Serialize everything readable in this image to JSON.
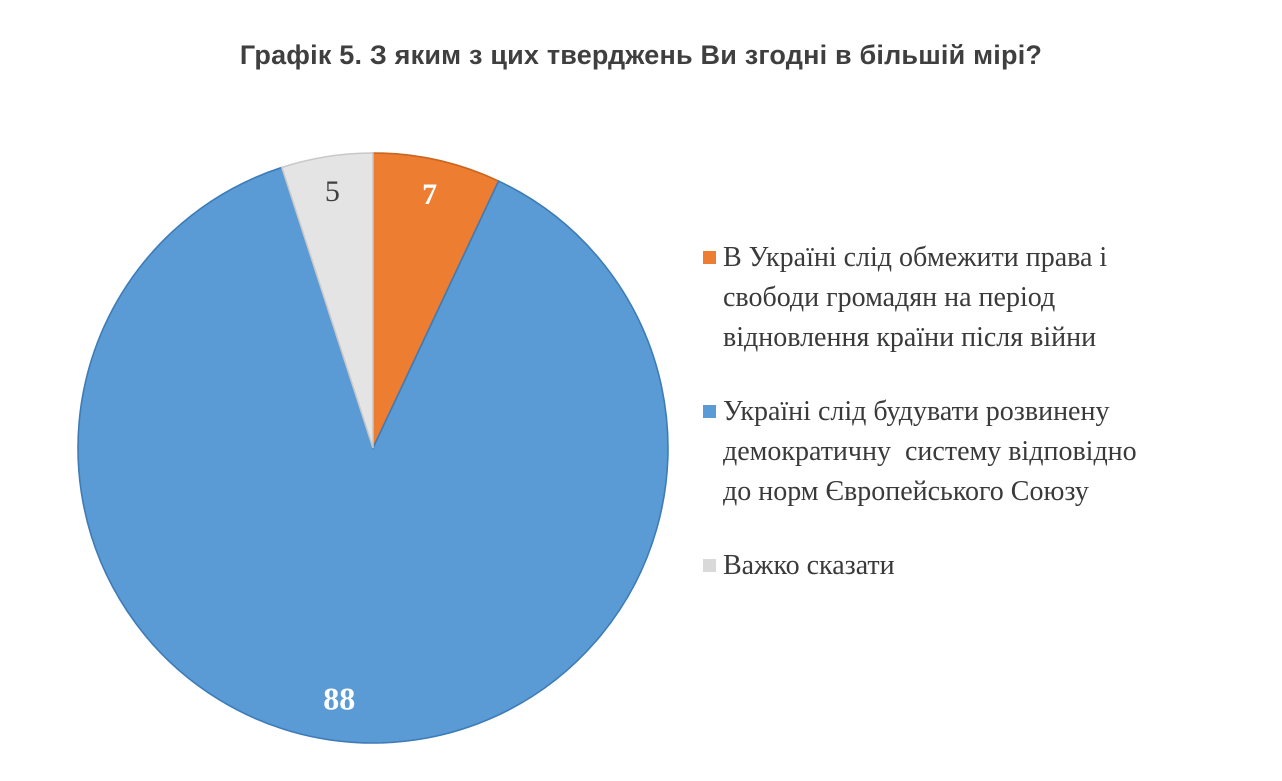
{
  "title": {
    "text": "Графік 5. З яким з цих тверджень Ви згодні в більшій мірі?",
    "color": "#3F3F3F"
  },
  "chart_data": {
    "type": "pie",
    "title": "Графік 5. З яким з цих тверджень Ви згодні в більшій мірі?",
    "legend_position": "right",
    "start_angle_deg": 0,
    "direction": "clockwise",
    "total": 100,
    "slices": [
      {
        "label": "В Україні слід обмежити права і свободи громадян на період відновлення країни після війни",
        "value": 7,
        "data_label": "7",
        "color": "#ED7D31",
        "stroke": "#C9651F",
        "label_color": "#FFFFFF"
      },
      {
        "label": "Україні слід будувати розвинену демократичну систему відповідно до норм Європейського Союзу",
        "value": 88,
        "data_label": "88",
        "color": "#5B9BD5",
        "stroke": "#3E7CB8",
        "label_color": "#FFFFFF"
      },
      {
        "label": "Важко сказати",
        "value": 5,
        "data_label": "5",
        "color": "#E4E4E4",
        "stroke": "#C8C8C8",
        "label_color": "#404040"
      }
    ]
  },
  "legend": {
    "items": [
      {
        "label": "В Україні слід обмежити права і\nсвободи громадян на період\nвідновлення країни після війни",
        "marker_color": "#ED7D31"
      },
      {
        "label": "Україні слід будувати розвинену\nдемократичну  систему відповідно\nдо норм Європейського Союзу",
        "marker_color": "#5B9BD5"
      },
      {
        "label": "Важко сказати",
        "marker_color": "#D9D9D9"
      }
    ]
  }
}
